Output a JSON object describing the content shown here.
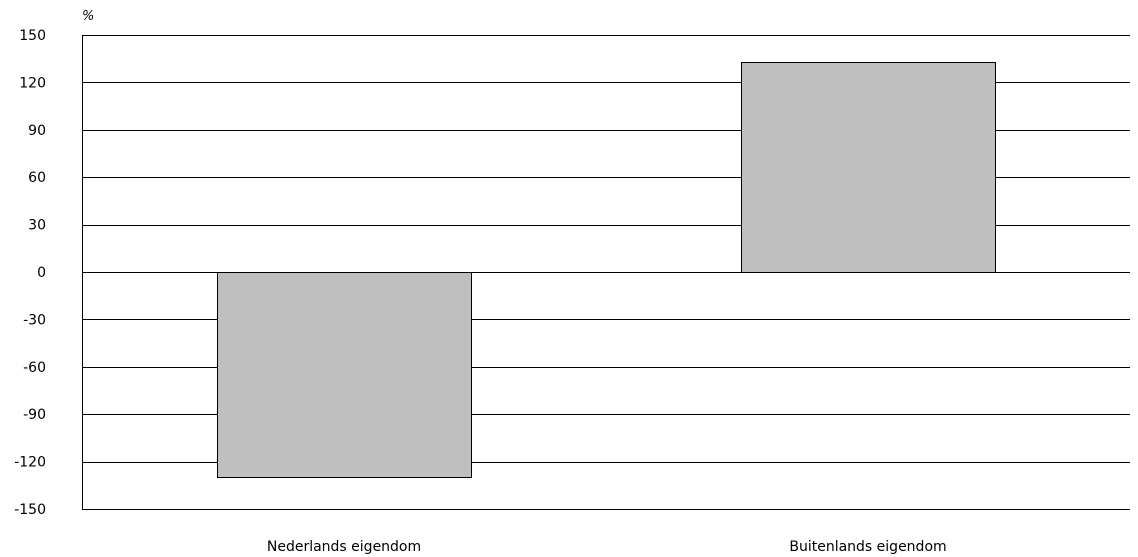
{
  "chart_data": {
    "type": "bar",
    "unit_label": "%",
    "categories": [
      "Nederlands eigendom",
      "Buitenlands eigendom"
    ],
    "values": [
      -130,
      133
    ],
    "ylim": [
      -150,
      150
    ],
    "yticks": [
      150,
      120,
      90,
      60,
      30,
      0,
      -30,
      -60,
      -90,
      -120,
      -150
    ],
    "grid": true,
    "bar_color": "#bfbfbf",
    "bar_edge_color": "#000000",
    "grid_color": "#000000"
  }
}
